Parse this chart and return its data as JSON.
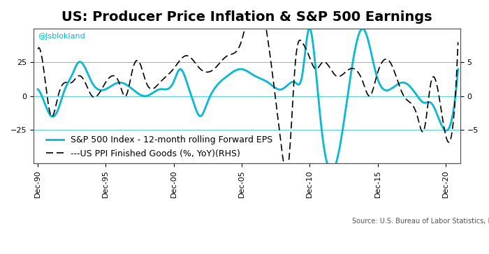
{
  "title": "US: Producer Price Inflation & S&P 500 Earnings",
  "watermark": "@Jsblokland",
  "source_text": "Source: U.S. Bureau of Labor Statistics, Refinitiv",
  "legend1": "S&P 500 Index - 12-month rolling Forward EPS",
  "legend2": "---US PPI Finished Goods (%, YoY)(RHS)",
  "left_ylim": [
    -50,
    50
  ],
  "right_ylim": [
    -10,
    10
  ],
  "left_yticks": [
    -25,
    0,
    25
  ],
  "right_yticks": [
    -5,
    0,
    5
  ],
  "xtick_labels": [
    "Dec-90",
    "Dec-95",
    "Dec-00",
    "Dec-05",
    "Dec-10",
    "Dec-15",
    "Dec-20"
  ],
  "background_color": "#ffffff",
  "border_color": "#cccccc",
  "grid_color": "#00bcd4",
  "sp500_color": "#00bcd4",
  "ppi_color": "#000000",
  "title_fontsize": 14,
  "label_fontsize": 9,
  "tick_fontsize": 8
}
